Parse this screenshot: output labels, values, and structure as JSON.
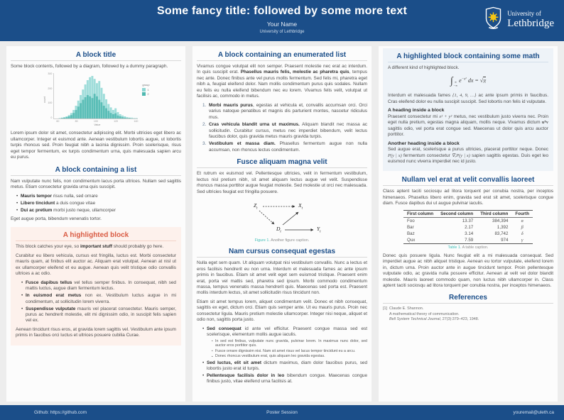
{
  "header": {
    "title": "Some fancy title: followed by some more text",
    "author": "Your Name",
    "affiliation": "University of Lethbridge",
    "logo": {
      "top": "University of",
      "bottom": "Lethbridge"
    },
    "bar_color": "#1b4e89"
  },
  "footer": {
    "github": "Github: https://github.com",
    "center": "Poster Session",
    "email": "youremail@uleth.ca"
  },
  "colors": {
    "primary_blue": "#1b4e89",
    "alert_red": "#d95b43",
    "alert_bg": "#fdf1ec",
    "example_bg": "#eef3f8",
    "caption_teal": "#3fbdb6",
    "hist_light_teal": "#8ed7d3",
    "hist_dark_teal": "#4fb8b0"
  },
  "left": {
    "block1": {
      "title": "A block title",
      "intro": "Some block contents, followed by a diagram, followed by a dummy paragraph.",
      "outro": "Lorem ipsum dolor sit amet, consectetur adipiscing elit. Morbi ultricies eget libero ac ullamcorper. Integer et euismod ante. Aenean vestibulum lobortis augue, ut lobortis turpis rhoncus sed. Proin feugiat nibh a lacinia dignissim. Proin scelerisque, risus eget tempor fermentum, ex turpis condimentum urna, quis malesuada sapien arcu eu purus."
    },
    "block2": {
      "title": "A block containing a list",
      "intro": "Nam vulputate nunc felis, non condimentum lacus porta ultrices. Nullam sed sagittis metus. Etiam consectetur gravida urna quis suscipit.",
      "items": [
        {
          "lead": "Mauris tempor",
          "rest": " risus nulla, sed ornare"
        },
        {
          "lead": "Libero tincidunt",
          "rest": " a duis congue vitae"
        },
        {
          "lead": "Dui ac pretium",
          "rest": " morbi justo neque, ullamcorper"
        }
      ],
      "outro": "Eget augue porta, bibendum venenatis tortor."
    },
    "block3": {
      "title": "A highlighted block",
      "p1_pre": "This block catches your eye, so ",
      "p1_bold": "important stuff",
      "p1_post": " should probably go here.",
      "p2": "Curabitur eu libero vehicula, cursus est fringilla, luctus est. Morbi consectetur mauris quam, at finibus elit auctor ac. Aliquam erat volutpat. Aenean at nisl ut ex ullamcorper eleifend et eu augue. Aenean quis velit tristique odio convallis ultrices a ac odio.",
      "items": [
        {
          "lead": "Fusce dapibus tellus",
          "rest": " vel tellus semper finibus. In consequat, nibh sed mattis luctus, augue diam fermentum lectus."
        },
        {
          "lead": "In euismod erat metus",
          "rest": " non ex. Vestibulum luctus augue in mi condimentum, at sollicitudin lorem viverra."
        },
        {
          "lead": "Suspendisse vulputate",
          "rest": " mauris vel placerat consectetur. Mauris semper, purus ac hendrerit molestie, elit mi dignissim odio, in suscipit felis sapien vel ex."
        }
      ],
      "outro": "Aenean tincidunt risus eros, at gravida lorem sagittis vel. Vestibulum ante ipsum primis in faucibus orci luctus et ultrices posuere cubilia Curae."
    }
  },
  "middle": {
    "block1": {
      "title": "A block containing an enumerated list",
      "p1_pre": "Vivamus congue volutpat elit non semper. Praesent molestie nec erat ac interdum. In quis suscipit erat. ",
      "p1_bold": "Phasellus mauris felis, molestie ac pharetra quis",
      "p1_post": ", tempus nec ante. Donec finibus ante vel purus mollis fermentum. Sed felis mi, pharetra eget nibh a, feugiat eleifend dolor. Nam mollis condimentum purus quis sodales. Nullam eu felis eu nulla eleifend bibendum nec eu lorem. Vivamus felis velit, volutpat ut facilisis ac, commodo in metus.",
      "items": [
        {
          "lead": "Morbi mauris purus",
          "rest": ", egestas at vehicula et, convallis accumsan orci. Orci varius natoque penatibus et magnis dis parturient montes, nascetur ridiculus mus."
        },
        {
          "lead": "Cras vehicula blandit urna ut maximus.",
          "rest": " Aliquam blandit nec massa ac sollicitudin. Curabitur cursus, metus nec imperdiet bibendum, velit lectus faucibus dolor, quis gravida metus mauris gravida turpis."
        },
        {
          "lead": "Vestibulum et massa diam.",
          "rest": " Phasellus fermentum augue non nulla accumsan, non rhoncus lectus condimentum."
        }
      ]
    },
    "block2": {
      "title": "Fusce aliquam magna velit",
      "p1": "Et rutrum ex euismod vel. Pellentesque ultricies, velit in fermentum vestibulum, lectus nisl pretium nibh, sit amet aliquam lectus augue vel velit. Suspendisse rhoncus massa porttitor augue feugiat molestie. Sed molestie ut orci nec malesuada. Sed ultricies feugiat est fringilla posuere.",
      "dag": {
        "node_z": "Z",
        "node_x": "X",
        "node_d": "D",
        "node_y": "Y",
        "subscript": "t"
      },
      "caption_label": "Figure 1.",
      "caption_text": " Another figure caption."
    },
    "block3": {
      "title": "Nam cursus consequat egestas",
      "p1": "Nulla eget sem quam. Ut aliquam volutpat nisi vestibulum convallis. Nunc a lectus et eros facilisis hendrerit eu non urna. Interdum et malesuada fames ac ante ipsum primis in faucibus. Etiam sit amet velit eget sem euismod tristique. Praesent enim erat, porta vel mattis sed, pharetra sed ipsum. Morbi commodo condimentum massa, tempus venenatis massa hendrerit quis. Maecenas sed porta est. Praesent mollis interdum lectus, sit amet sollicitudin risus tincidunt non.",
      "p2": "Etiam sit amet tempus lorem, aliquet condimentum velit. Donec et nibh consequat, sagittis ex eget, dictum orci. Etiam quis semper ante. Ut eu mauris purus. Proin nec consectetur ligula. Mauris pretium molestie ullamcorper. Integer nisi neque, aliquet et odio non, sagittis porta justo.",
      "item1": {
        "lead": "Sed consequat",
        "rest": " id ante vel efficitur. Praesent congue massa sed est scelerisque, elementum mollis augue iaculis."
      },
      "subitems": [
        "In sed est finibus, vulputate nunc gravida, pulvinar lorem. In maximus nunc dolor, sed auctor eros porttitor quis.",
        "Fusce ornare dignissim nisi. Nam sit amet risus vel lacus tempor tincidunt eu a arcu.",
        "Donec rhoncus vestibulum erat, quis aliquam leo gravida egestas."
      ],
      "item2": {
        "lead": "Sed luctus, elit sit amet",
        "rest": " dictum maximus, diam dolor faucibus purus, sed lobortis justo erat id turpis."
      },
      "item3": {
        "lead": "Pellentesque facilisis dolor in leo",
        "rest": " bibendum congue. Maecenas congue finibus justo, vitae eleifend urna facilisis at."
      }
    }
  },
  "right": {
    "block1": {
      "title": "A highlighted block containing some math",
      "p1": "A different kind of highlighted block.",
      "equation": {
        "integral": "∫",
        "lim_top": "∞",
        "lim_bot": "−∞",
        "body": "e",
        "exponent": "−x²",
        "tail": " dx = ",
        "sqrt": "√",
        "radicand": "π"
      },
      "p2_pre": "Interdum et malesuada fames ",
      "p2_math": "{1, 4, 9, …}",
      "p2_post": " ac ante ipsum primis in faucibus. Cras eleifend dolor eu nulla suscipit suscipit. Sed lobortis non felis id vulputate.",
      "subhead1": "A heading inside a block",
      "p3_pre": "Praesent consectetur mi ",
      "p3_math1": "x² + y²",
      "p3_mid": " metus, nec vestibulum justo viverra nec. Proin eget nulla pretium, egestas magna aliquam, mollis neque. Vivamus dictum ",
      "p3_math2": "uᵀv",
      "p3_post": " sagittis odio, vel porta erat congue sed. Maecenas ut dolor quis arcu auctor porttitor.",
      "subhead2": "Another heading inside a block",
      "p4_pre": "Sed augue erat, scelerisque a purus ultricies, placerat porttitor neque. Donec ",
      "p4_math1": "P(y | x)",
      "p4_mid": " fermentum consectetur ",
      "p4_math2": "∇ₓP(y | x)",
      "p4_post": " sapien sagittis egestas. Duis eget leo euismod nunc viverra imperdiet nec id justo."
    },
    "block2": {
      "title": "Nullam vel erat at velit convallis laoreet",
      "p1": "Class aptent taciti sociosqu ad litora torquent per conubia nostra, per inceptos himenaeos. Phasellus libero enim, gravida sed erat sit amet, scelerisque congue diam. Fusce dapibus dui ut augue pulvinar iaculis.",
      "table": {
        "headers": [
          "First column",
          "Second column",
          "Third column",
          "Fourth"
        ],
        "rows": [
          [
            "Foo",
            "13.37",
            "384,394",
            "α"
          ],
          [
            "Bar",
            "2.17",
            "1,392",
            "β"
          ],
          [
            "Baz",
            "3.14",
            "83,742",
            "δ"
          ],
          [
            "Qux",
            "7.59",
            "974",
            "γ"
          ]
        ]
      },
      "caption_label": "Table 1.",
      "caption_text": " A table caption.",
      "p2": "Donec quis posuere ligula. Nunc feugiat elit a mi malesuada consequat. Sed imperdiet augue ac nibh aliquet tristique. Aenean eu tortor vulputate, eleifend lorem in, dictum urna. Proin auctor ante in augue tincidunt tempor. Proin pellentesque vulputate odio, ac gravida nulla posuere efficitur. Aenean at velit vel dolor blandit molestie. Mauris laoreet commodo quam, non luctus nibh ullamcorper in. Class aptent taciti sociosqu ad litora torquent per conubia nostra, per inceptos himenaeos."
    },
    "block3": {
      "title": "References",
      "ref_number": "[1]",
      "ref_author": "Claude E. Shannon.",
      "ref_title": "A mathematical theory of communication.",
      "ref_journal": "Bell System Technical Journal",
      "ref_rest": ", 27(3):379–423, 1948."
    }
  },
  "chart_data": {
    "type": "bar",
    "title": "",
    "xlabel": "Value",
    "ylabel": "count",
    "x_ticks": [
      "60",
      "80",
      "100",
      "120",
      "140"
    ],
    "y_ticks": [
      "0",
      "100",
      "200",
      "300"
    ],
    "legend": {
      "title": "group",
      "items": [
        {
          "label": "1",
          "color": "#8ed7d3"
        },
        {
          "label": "2",
          "color": "#4fb8b0"
        }
      ]
    },
    "series": [
      {
        "name": "1",
        "color": "#8ed7d3",
        "values": [
          0,
          0,
          1,
          2,
          3,
          5,
          8,
          13,
          20,
          30,
          42,
          55,
          68,
          80,
          90,
          97,
          100,
          93,
          83,
          88,
          72,
          58,
          45,
          34,
          26,
          20,
          24,
          15,
          10,
          7,
          5,
          3,
          2,
          2,
          1,
          1
        ]
      },
      {
        "name": "2",
        "color": "#4fb8b0",
        "values": [
          0,
          0,
          0,
          1,
          2,
          3,
          5,
          8,
          13,
          20,
          28,
          36,
          44,
          50,
          55,
          52,
          48,
          58,
          52,
          44,
          38,
          30,
          24,
          18,
          13,
          10,
          12,
          7,
          5,
          3,
          2,
          1,
          1,
          0,
          0,
          0
        ]
      }
    ],
    "legend_position": "right",
    "grid": false
  }
}
